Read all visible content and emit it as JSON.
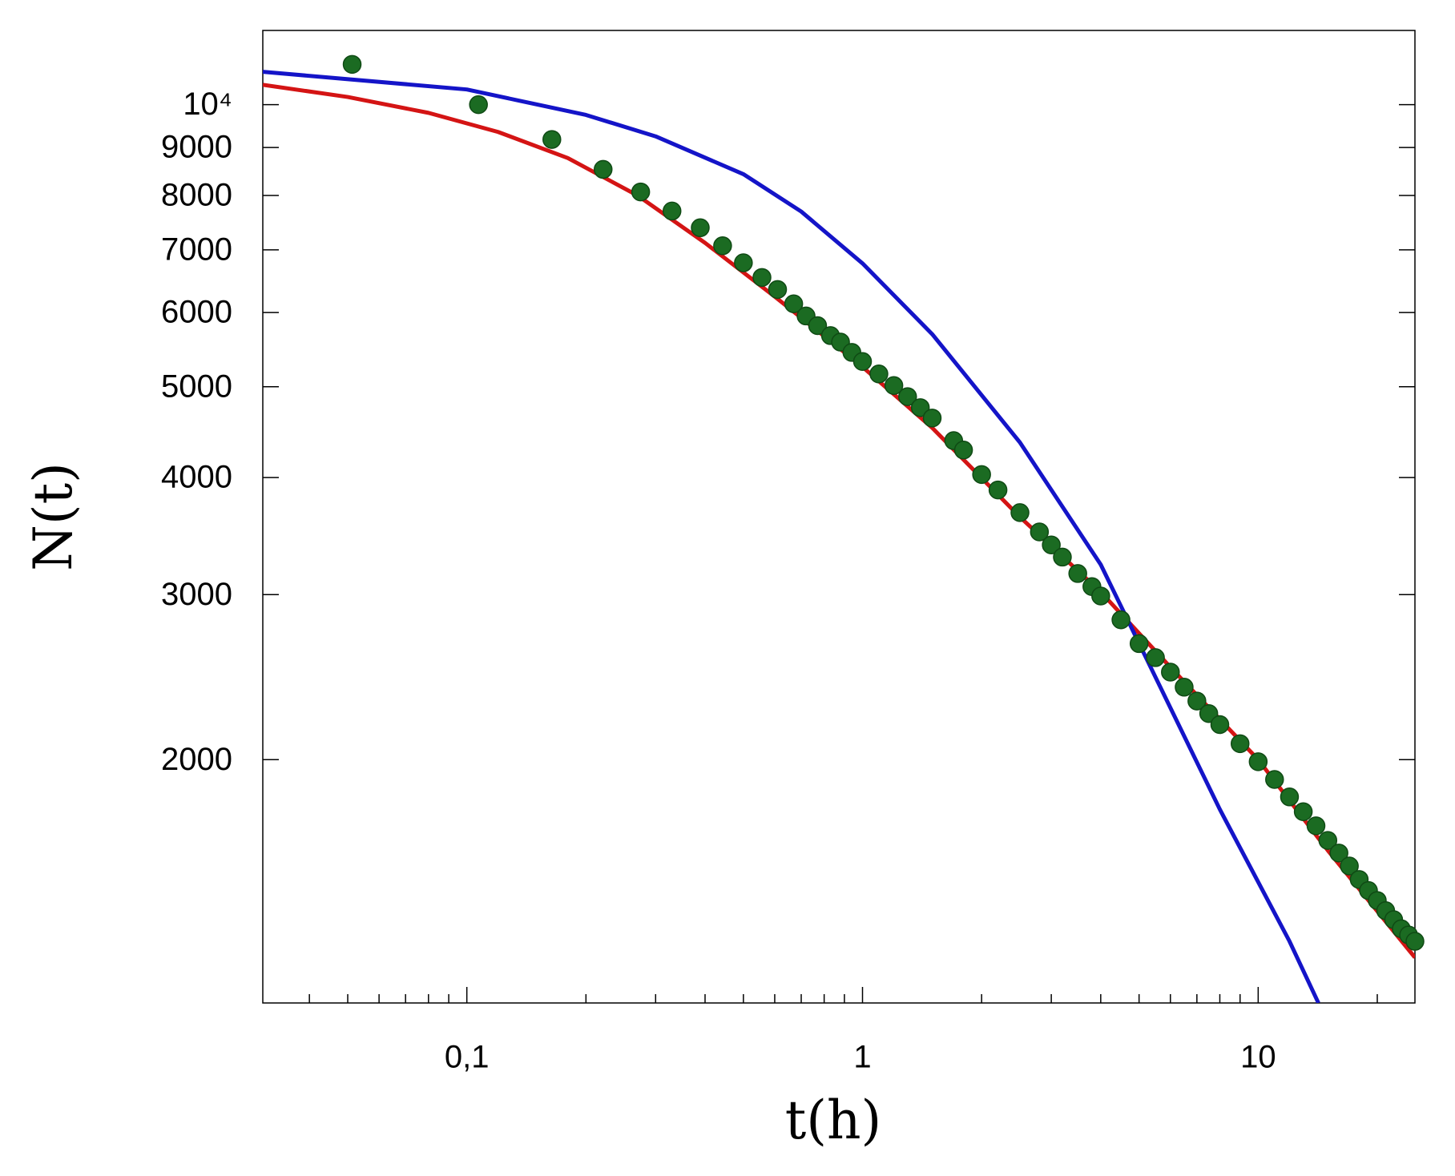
{
  "chart_data": {
    "type": "scatter",
    "x_label": "t(h)",
    "y_label": "N(t)",
    "xscale": "log",
    "yscale": "log",
    "xlim": [
      0.0305,
      24.9
    ],
    "ylim": [
      1100,
      12000
    ],
    "xticks": [
      {
        "value": 0.1,
        "label": "0,1"
      },
      1,
      10
    ],
    "xminorticks": [
      0.04,
      0.05,
      0.06,
      0.07,
      0.08,
      0.09,
      0.2,
      0.3,
      0.4,
      0.5,
      0.6,
      0.7,
      0.8,
      0.9,
      2,
      3,
      4,
      5,
      6,
      7,
      8,
      9,
      20
    ],
    "yticks": [
      2000,
      3000,
      4000,
      5000,
      6000,
      7000,
      8000,
      9000,
      {
        "value": 10000,
        "label": "10⁴"
      }
    ],
    "series": [
      {
        "type": "line",
        "color": "#d41414",
        "x": [
          0.0305,
          0.05,
          0.08,
          0.12,
          0.18,
          0.27,
          0.4,
          0.6,
          1,
          1.5,
          2.5,
          4,
          6,
          10,
          15,
          24.9
        ],
        "values": [
          10500,
          10190,
          9800,
          9350,
          8770,
          8000,
          7120,
          6240,
          5250,
          4520,
          3630,
          3020,
          2510,
          2000,
          1600,
          1230
        ]
      },
      {
        "type": "line",
        "color": "#1414c8",
        "x": [
          0.0305,
          0.1,
          0.2,
          0.3,
          0.5,
          0.7,
          1,
          1.5,
          2.5,
          4,
          5.5,
          8,
          12,
          14.2
        ],
        "values": [
          10840,
          10380,
          9750,
          9250,
          8430,
          7690,
          6770,
          5690,
          4360,
          3230,
          2450,
          1770,
          1280,
          1100
        ]
      },
      {
        "type": "scatter",
        "color": "#1b6b22",
        "x": [
          0.0513,
          0.107,
          0.164,
          0.221,
          0.275,
          0.33,
          0.389,
          0.443,
          0.5,
          0.557,
          0.61,
          0.67,
          0.72,
          0.77,
          0.83,
          0.88,
          0.94,
          1.0,
          1.1,
          1.2,
          1.3,
          1.4,
          1.5,
          1.7,
          1.8,
          2,
          2.2,
          2.5,
          2.8,
          3,
          3.2,
          3.5,
          3.8,
          4,
          4.5,
          5,
          5.5,
          6,
          6.5,
          7,
          7.5,
          8,
          9,
          10,
          11,
          12,
          13,
          14,
          15,
          16,
          17,
          18,
          19,
          20,
          21,
          22,
          23,
          24,
          24.9
        ],
        "values": [
          11040,
          10000,
          9180,
          8530,
          8070,
          7700,
          7390,
          7070,
          6780,
          6540,
          6350,
          6130,
          5950,
          5810,
          5670,
          5580,
          5440,
          5320,
          5160,
          5015,
          4880,
          4750,
          4630,
          4380,
          4280,
          4030,
          3880,
          3670,
          3500,
          3390,
          3290,
          3160,
          3060,
          2990,
          2820,
          2660,
          2570,
          2480,
          2390,
          2310,
          2240,
          2180,
          2080,
          1990,
          1905,
          1825,
          1760,
          1700,
          1640,
          1590,
          1540,
          1490,
          1450,
          1415,
          1380,
          1350,
          1320,
          1300,
          1280
        ]
      }
    ]
  }
}
